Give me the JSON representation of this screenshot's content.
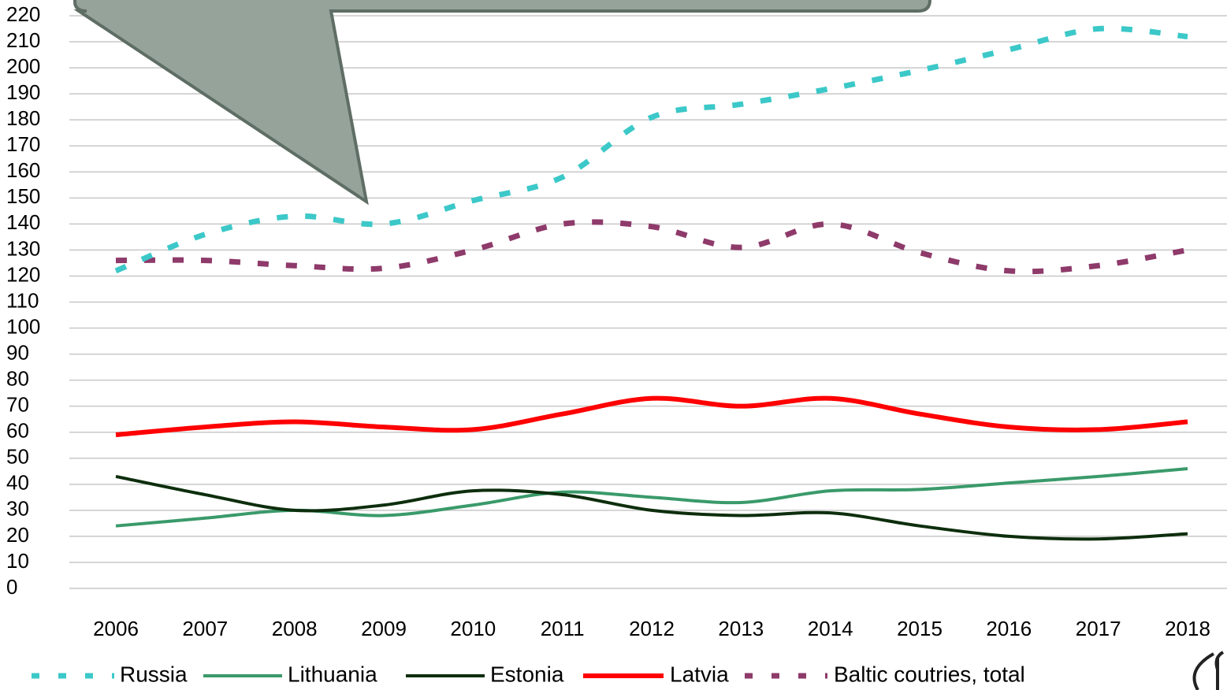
{
  "chart_data": {
    "type": "line",
    "categories": [
      "2006",
      "2007",
      "2008",
      "2009",
      "2010",
      "2011",
      "2012",
      "2013",
      "2014",
      "2015",
      "2016",
      "2017",
      "2018"
    ],
    "series": [
      {
        "name": "Russia",
        "color": "#3cc8c8",
        "style": "dashed",
        "width": 7,
        "values": [
          122,
          136,
          143,
          140,
          149,
          158,
          181,
          186,
          192,
          199,
          207,
          215,
          212
        ]
      },
      {
        "name": "Lithuania",
        "color": "#3a9a6a",
        "style": "solid",
        "width": 4,
        "values": [
          24,
          27,
          30,
          28,
          32,
          37,
          35,
          33,
          37.5,
          38,
          40.5,
          43,
          46
        ]
      },
      {
        "name": "Estonia",
        "color": "#0d2e0d",
        "style": "solid",
        "width": 4,
        "values": [
          43,
          36,
          30,
          32,
          37.5,
          36,
          30,
          28,
          29,
          24,
          20,
          19,
          21
        ]
      },
      {
        "name": "Latvia",
        "color": "#ff0000",
        "style": "solid",
        "width": 6,
        "values": [
          59,
          62,
          64,
          62,
          61,
          67,
          73,
          70,
          73,
          67,
          62,
          61,
          64
        ]
      },
      {
        "name": "Baltic coutries, total",
        "color": "#8e3a6a",
        "style": "dashed",
        "width": 7,
        "values": [
          126,
          126,
          124,
          123,
          130,
          140,
          139,
          131,
          140,
          129,
          122,
          124,
          130
        ]
      }
    ],
    "ylim": [
      0,
      220
    ],
    "yticks": [
      0,
      10,
      20,
      30,
      40,
      50,
      60,
      70,
      80,
      90,
      100,
      110,
      120,
      130,
      140,
      150,
      160,
      170,
      180,
      190,
      200,
      210,
      220
    ],
    "grid": true,
    "legend": "bottom",
    "smooth": true
  }
}
